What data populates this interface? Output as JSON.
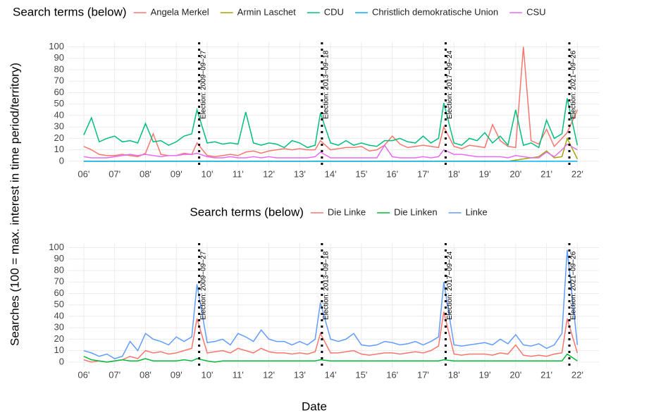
{
  "chart_data": [
    {
      "type": "line",
      "legend_title": "Search terms (below)",
      "ylabel": "Searches (100 = max. interest in time period/territory)",
      "x": [
        2006,
        2006.25,
        2006.5,
        2006.75,
        2007,
        2007.25,
        2007.5,
        2007.75,
        2008,
        2008.25,
        2008.5,
        2008.75,
        2009,
        2009.25,
        2009.5,
        2009.67,
        2010,
        2010.25,
        2010.5,
        2010.75,
        2011,
        2011.25,
        2011.5,
        2011.75,
        2012,
        2012.25,
        2012.5,
        2012.75,
        2013,
        2013.25,
        2013.5,
        2013.67,
        2014,
        2014.25,
        2014.5,
        2014.75,
        2015,
        2015.25,
        2015.5,
        2015.75,
        2016,
        2016.25,
        2016.5,
        2016.75,
        2017,
        2017.25,
        2017.5,
        2017.67,
        2018,
        2018.25,
        2018.5,
        2018.75,
        2019,
        2019.25,
        2019.5,
        2019.75,
        2020,
        2020.25,
        2020.5,
        2020.75,
        2021,
        2021.25,
        2021.5,
        2021.67,
        2022
      ],
      "series": [
        {
          "name": "Angela Merkel",
          "color": "#F8766D",
          "values": [
            13,
            10,
            6,
            5,
            5,
            6,
            5,
            4,
            7,
            24,
            6,
            5,
            5,
            7,
            6,
            16,
            5,
            4,
            5,
            6,
            5,
            8,
            9,
            7,
            9,
            10,
            11,
            10,
            11,
            10,
            10,
            18,
            10,
            11,
            12,
            12,
            13,
            9,
            10,
            14,
            22,
            15,
            12,
            13,
            14,
            13,
            12,
            30,
            13,
            11,
            14,
            13,
            12,
            32,
            18,
            13,
            12,
            100,
            18,
            15,
            28,
            13,
            20,
            25,
            45
          ]
        },
        {
          "name": "Armin Laschet",
          "color": "#A3A500",
          "values": [
            0,
            0,
            0,
            0,
            0,
            0,
            0,
            0,
            0,
            0,
            0,
            0,
            0,
            0,
            0,
            0,
            0,
            0,
            0,
            0,
            0,
            0,
            0,
            0,
            0,
            0,
            0,
            0,
            0,
            0,
            0,
            0,
            0,
            0,
            0,
            0,
            0,
            0,
            0,
            0,
            0,
            0,
            0,
            0,
            0,
            0,
            0,
            0,
            0,
            0,
            0,
            0,
            0,
            0,
            0,
            0,
            1,
            2,
            3,
            4,
            9,
            3,
            4,
            20,
            2
          ]
        },
        {
          "name": "CDU",
          "color": "#00BF7D",
          "values": [
            23,
            38,
            17,
            20,
            22,
            17,
            18,
            16,
            33,
            17,
            18,
            14,
            17,
            22,
            24,
            45,
            16,
            17,
            15,
            16,
            15,
            43,
            16,
            14,
            16,
            15,
            12,
            18,
            16,
            12,
            14,
            42,
            16,
            14,
            18,
            14,
            16,
            14,
            13,
            18,
            18,
            20,
            17,
            16,
            22,
            16,
            20,
            51,
            16,
            14,
            20,
            18,
            25,
            16,
            22,
            14,
            45,
            14,
            16,
            12,
            36,
            20,
            24,
            55,
            14
          ]
        },
        {
          "name": "Christlich demokratische Union",
          "color": "#00B0F6",
          "values": [
            0,
            0,
            0,
            0,
            0,
            0,
            0,
            0,
            0,
            0,
            0,
            0,
            0,
            0,
            0,
            0,
            0,
            0,
            0,
            0,
            0,
            0,
            0,
            0,
            0,
            0,
            0,
            0,
            0,
            0,
            0,
            0,
            0,
            0,
            0,
            0,
            0,
            0,
            0,
            0,
            0,
            0,
            0,
            0,
            0,
            0,
            0,
            0,
            0,
            0,
            0,
            0,
            0,
            0,
            0,
            0,
            0,
            0,
            0,
            0,
            0,
            0,
            0,
            0,
            0
          ]
        },
        {
          "name": "CSU",
          "color": "#E76BF3",
          "values": [
            4,
            3,
            3,
            3,
            4,
            5,
            6,
            5,
            6,
            5,
            4,
            5,
            5,
            6,
            6,
            7,
            4,
            3,
            3,
            4,
            3,
            3,
            4,
            3,
            4,
            3,
            3,
            3,
            3,
            3,
            4,
            8,
            3,
            3,
            3,
            3,
            3,
            3,
            3,
            14,
            4,
            3,
            3,
            3,
            4,
            3,
            4,
            10,
            6,
            6,
            5,
            4,
            4,
            4,
            4,
            3,
            5,
            4,
            3,
            3,
            8,
            4,
            10,
            15,
            10
          ]
        }
      ],
      "xlim": [
        2005.5,
        2022.7
      ],
      "ylim": [
        -5,
        104
      ],
      "xticks": [
        {
          "value": 2006,
          "label": "06'"
        },
        {
          "value": 2007,
          "label": "07'"
        },
        {
          "value": 2008,
          "label": "08'"
        },
        {
          "value": 2009,
          "label": "09'"
        },
        {
          "value": 2010,
          "label": "10'"
        },
        {
          "value": 2011,
          "label": "11'"
        },
        {
          "value": 2012,
          "label": "12'"
        },
        {
          "value": 2013,
          "label": "13'"
        },
        {
          "value": 2014,
          "label": "14'"
        },
        {
          "value": 2015,
          "label": "15'"
        },
        {
          "value": 2016,
          "label": "16'"
        },
        {
          "value": 2017,
          "label": "17'"
        },
        {
          "value": 2018,
          "label": "18'"
        },
        {
          "value": 2019,
          "label": "19'"
        },
        {
          "value": 2020,
          "label": "20'"
        },
        {
          "value": 2021,
          "label": "21'"
        },
        {
          "value": 2022,
          "label": "22'"
        }
      ],
      "yticks": [
        0,
        10,
        20,
        30,
        40,
        50,
        60,
        70,
        80,
        90,
        100
      ],
      "annotations": [
        {
          "x": 2009.74,
          "label": "Election: 2009−09−27"
        },
        {
          "x": 2013.72,
          "label": "Election: 2013−09−18"
        },
        {
          "x": 2017.73,
          "label": "Election: 2017−09−24"
        },
        {
          "x": 2021.74,
          "label": "Election: 2021−09−26"
        }
      ]
    },
    {
      "type": "line",
      "legend_title": "Search terms (below)",
      "xlabel": "Date",
      "x": [
        2006,
        2006.25,
        2006.5,
        2006.75,
        2007,
        2007.25,
        2007.5,
        2007.75,
        2008,
        2008.25,
        2008.5,
        2008.75,
        2009,
        2009.25,
        2009.5,
        2009.67,
        2010,
        2010.25,
        2010.5,
        2010.75,
        2011,
        2011.25,
        2011.5,
        2011.75,
        2012,
        2012.25,
        2012.5,
        2012.75,
        2013,
        2013.25,
        2013.5,
        2013.67,
        2014,
        2014.25,
        2014.5,
        2014.75,
        2015,
        2015.25,
        2015.5,
        2015.75,
        2016,
        2016.25,
        2016.5,
        2016.75,
        2017,
        2017.25,
        2017.5,
        2017.67,
        2018,
        2018.25,
        2018.5,
        2018.75,
        2019,
        2019.25,
        2019.5,
        2019.75,
        2020,
        2020.25,
        2020.5,
        2020.75,
        2021,
        2021.25,
        2021.5,
        2021.67,
        2022
      ],
      "series": [
        {
          "name": "Die Linke",
          "color": "#F8766D",
          "values": [
            2,
            0,
            1,
            0,
            1,
            2,
            5,
            3,
            10,
            8,
            9,
            7,
            8,
            10,
            12,
            38,
            8,
            9,
            10,
            8,
            12,
            10,
            8,
            12,
            9,
            8,
            8,
            7,
            8,
            7,
            9,
            25,
            8,
            8,
            9,
            10,
            7,
            6,
            7,
            8,
            8,
            7,
            8,
            9,
            8,
            10,
            14,
            44,
            7,
            6,
            7,
            7,
            7,
            6,
            8,
            7,
            15,
            6,
            5,
            6,
            5,
            7,
            8,
            38,
            8
          ]
        },
        {
          "name": "Die Linken",
          "color": "#00BA38",
          "values": [
            5,
            2,
            1,
            0,
            1,
            2,
            1,
            1,
            3,
            1,
            1,
            1,
            1,
            2,
            1,
            3,
            1,
            0,
            1,
            1,
            1,
            1,
            1,
            1,
            1,
            1,
            1,
            1,
            1,
            1,
            1,
            2,
            1,
            1,
            1,
            1,
            1,
            1,
            1,
            1,
            1,
            1,
            1,
            1,
            1,
            1,
            1,
            2,
            1,
            1,
            1,
            1,
            1,
            1,
            1,
            1,
            1,
            1,
            1,
            1,
            1,
            1,
            1,
            7,
            1
          ]
        },
        {
          "name": "Linke",
          "color": "#619CFF",
          "values": [
            10,
            8,
            5,
            7,
            3,
            5,
            18,
            10,
            25,
            20,
            18,
            15,
            22,
            18,
            22,
            68,
            17,
            18,
            20,
            15,
            25,
            22,
            18,
            28,
            20,
            18,
            18,
            15,
            18,
            15,
            20,
            52,
            20,
            18,
            20,
            25,
            15,
            14,
            15,
            18,
            17,
            15,
            16,
            18,
            15,
            18,
            22,
            70,
            15,
            14,
            15,
            16,
            17,
            15,
            20,
            16,
            24,
            15,
            14,
            16,
            12,
            15,
            25,
            98,
            15
          ]
        }
      ],
      "xlim": [
        2005.5,
        2022.7
      ],
      "ylim": [
        -5,
        104
      ],
      "xticks": [
        {
          "value": 2006,
          "label": "06'"
        },
        {
          "value": 2007,
          "label": "07'"
        },
        {
          "value": 2008,
          "label": "08'"
        },
        {
          "value": 2009,
          "label": "09'"
        },
        {
          "value": 2010,
          "label": "10'"
        },
        {
          "value": 2011,
          "label": "11'"
        },
        {
          "value": 2012,
          "label": "12'"
        },
        {
          "value": 2013,
          "label": "13'"
        },
        {
          "value": 2014,
          "label": "14'"
        },
        {
          "value": 2015,
          "label": "15'"
        },
        {
          "value": 2016,
          "label": "16'"
        },
        {
          "value": 2017,
          "label": "17'"
        },
        {
          "value": 2018,
          "label": "18'"
        },
        {
          "value": 2019,
          "label": "19'"
        },
        {
          "value": 2020,
          "label": "20'"
        },
        {
          "value": 2021,
          "label": "21'"
        },
        {
          "value": 2022,
          "label": "22'"
        }
      ],
      "yticks": [
        0,
        10,
        20,
        30,
        40,
        50,
        60,
        70,
        80,
        90,
        100
      ],
      "annotations": [
        {
          "x": 2009.74,
          "label": "Election: 2009−09−27"
        },
        {
          "x": 2013.72,
          "label": "Election: 2013−09−18"
        },
        {
          "x": 2017.73,
          "label": "Election: 2017−09−24"
        },
        {
          "x": 2021.74,
          "label": "Election: 2021−09−26"
        }
      ]
    }
  ]
}
